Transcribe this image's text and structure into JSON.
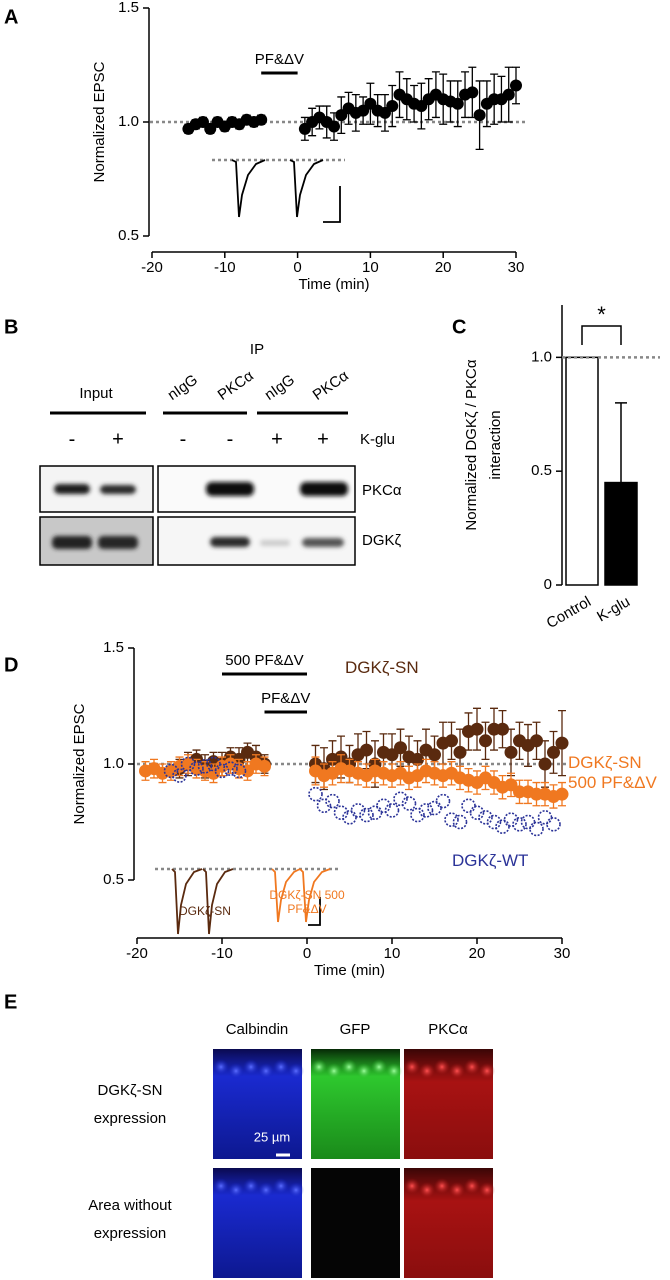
{
  "chart_data": [
    {
      "type": "scatter",
      "label": "A",
      "ylabel": "Normalized EPSC",
      "xlabel": "Time (min)",
      "xlim": [
        -20,
        30
      ],
      "xticks": [
        -20,
        -10,
        0,
        10,
        20,
        30
      ],
      "ylim": [
        0.5,
        1.5
      ],
      "yticks": [
        0.5,
        {
          "value": 1,
          "label": "1.0"
        },
        1.5
      ],
      "reference": 1,
      "bars": [
        {
          "label": "PF&ΔV",
          "x": [
            -5,
            0
          ]
        }
      ],
      "series": [
        {
          "color": "#000000",
          "marker": "filled",
          "x": [
            -15,
            -14,
            -13,
            -12,
            -11,
            -10,
            -9,
            -8,
            -7,
            -6,
            -5,
            1,
            2,
            3,
            4,
            5,
            6,
            7,
            8,
            9,
            10,
            11,
            12,
            13,
            14,
            15,
            16,
            17,
            18,
            19,
            20,
            21,
            22,
            23,
            24,
            25,
            26,
            27,
            28,
            29,
            30
          ],
          "values": [
            0.97,
            0.99,
            1.0,
            0.97,
            1.0,
            0.98,
            1.0,
            0.99,
            1.01,
            1.0,
            1.01,
            0.97,
            1.0,
            1.02,
            1.0,
            0.98,
            1.03,
            1.06,
            1.04,
            1.05,
            1.08,
            1.05,
            1.04,
            1.07,
            1.12,
            1.1,
            1.08,
            1.07,
            1.1,
            1.12,
            1.1,
            1.09,
            1.08,
            1.12,
            1.13,
            1.03,
            1.08,
            1.1,
            1.1,
            1.12,
            1.16
          ],
          "errors": [
            0.02,
            0.02,
            0.02,
            0.02,
            0.02,
            0.02,
            0.02,
            0.02,
            0.02,
            0.02,
            0.02,
            0.05,
            0.06,
            0.05,
            0.07,
            0.06,
            0.08,
            0.07,
            0.08,
            0.06,
            0.09,
            0.07,
            0.08,
            0.09,
            0.1,
            0.09,
            0.08,
            0.1,
            0.09,
            0.1,
            0.11,
            0.09,
            0.1,
            0.1,
            0.11,
            0.15,
            0.1,
            0.11,
            0.1,
            0.12,
            0.08
          ]
        }
      ]
    },
    {
      "type": "bar",
      "label": "C",
      "ylabel": [
        "Normalized DGKζ / PKCα",
        "interaction"
      ],
      "categories": [
        "Control",
        "K-glu"
      ],
      "values": [
        1,
        0.45
      ],
      "errors": [
        null,
        0.35
      ],
      "colors": [
        "#ffffff",
        "#000000"
      ],
      "ylim": [
        0,
        1.23
      ],
      "yticks": [
        0,
        0.5,
        {
          "value": 1,
          "label": "1.0"
        }
      ],
      "reference": 1,
      "annotation": "*"
    },
    {
      "type": "scatter",
      "label": "D",
      "ylabel": "Normalized EPSC",
      "xlabel": "Time (min)",
      "xlim": [
        -20,
        30
      ],
      "xticks": [
        -20,
        -10,
        0,
        10,
        20,
        30
      ],
      "ylim": [
        0.5,
        1.5
      ],
      "yticks": [
        0.5,
        {
          "value": 1,
          "label": "1.0"
        },
        1.5
      ],
      "reference": 1,
      "bars": [
        {
          "label": "500 PF&ΔV",
          "x": [
            -10,
            0
          ]
        },
        {
          "label": "PF&ΔV",
          "x": [
            -5,
            0
          ]
        }
      ],
      "inset_labels": [
        "DGKζ-SN",
        "DGKζ-SN 500 PF&ΔV"
      ],
      "series": [
        {
          "name": "DGKζ-SN",
          "color": "#5a2a0f",
          "marker": "filled",
          "x": [
            -15,
            -14,
            -13,
            -12,
            -11,
            -10,
            -9,
            -8,
            -7,
            -6,
            -5,
            1,
            2,
            3,
            4,
            5,
            6,
            7,
            8,
            9,
            10,
            11,
            12,
            13,
            14,
            15,
            16,
            17,
            18,
            19,
            20,
            21,
            22,
            23,
            24,
            25,
            26,
            27,
            28,
            29,
            30
          ],
          "values": [
            0.98,
            1.0,
            1.02,
            0.99,
            1.01,
            1.0,
            1.03,
            1.02,
            1.05,
            1.03,
            1.0,
            1.0,
            0.98,
            1.02,
            1.03,
            1.0,
            1.04,
            1.06,
            1.0,
            1.05,
            1.04,
            1.07,
            1.03,
            1.02,
            1.06,
            1.04,
            1.09,
            1.1,
            1.05,
            1.14,
            1.15,
            1.1,
            1.15,
            1.15,
            1.05,
            1.1,
            1.08,
            1.1,
            1.0,
            1.05,
            1.09
          ],
          "errors": [
            0.04,
            0.05,
            0.04,
            0.05,
            0.04,
            0.05,
            0.04,
            0.05,
            0.04,
            0.05,
            0.04,
            0.08,
            0.09,
            0.08,
            0.09,
            0.08,
            0.09,
            0.08,
            0.1,
            0.08,
            0.09,
            0.08,
            0.09,
            0.08,
            0.09,
            0.08,
            0.09,
            0.08,
            0.1,
            0.08,
            0.09,
            0.08,
            0.09,
            0.08,
            0.1,
            0.08,
            0.09,
            0.08,
            0.1,
            0.09,
            0.14
          ]
        },
        {
          "name": "DGKζ-SN 500 PF&ΔV",
          "color": "#f07820",
          "marker": "filled",
          "x": [
            -19,
            -18,
            -17,
            -16,
            -15,
            -14,
            -13,
            -12,
            -11,
            -10,
            -9,
            -8,
            -7,
            -6,
            -5,
            1,
            2,
            3,
            4,
            5,
            6,
            7,
            8,
            9,
            10,
            11,
            12,
            13,
            14,
            15,
            16,
            17,
            18,
            19,
            20,
            21,
            22,
            23,
            24,
            25,
            26,
            27,
            28,
            29,
            30
          ],
          "values": [
            0.97,
            0.98,
            0.96,
            0.97,
            0.99,
            1.0,
            0.98,
            0.97,
            0.96,
            0.99,
            1.0,
            0.98,
            0.97,
            1.0,
            0.99,
            0.97,
            0.95,
            0.96,
            0.98,
            0.97,
            0.96,
            0.95,
            0.97,
            0.96,
            0.95,
            0.96,
            0.94,
            0.95,
            0.97,
            0.96,
            0.95,
            0.96,
            0.94,
            0.93,
            0.92,
            0.94,
            0.92,
            0.9,
            0.91,
            0.88,
            0.88,
            0.87,
            0.87,
            0.86,
            0.87
          ],
          "errors": [
            0.04,
            0.04,
            0.04,
            0.04,
            0.04,
            0.04,
            0.04,
            0.04,
            0.04,
            0.04,
            0.04,
            0.04,
            0.04,
            0.04,
            0.04,
            0.06,
            0.05,
            0.05,
            0.06,
            0.05,
            0.05,
            0.05,
            0.05,
            0.05,
            0.05,
            0.05,
            0.05,
            0.05,
            0.05,
            0.05,
            0.05,
            0.05,
            0.05,
            0.05,
            0.05,
            0.05,
            0.05,
            0.05,
            0.05,
            0.05,
            0.05,
            0.05,
            0.05,
            0.05,
            0.05
          ]
        },
        {
          "name": "DGKζ-WT",
          "color": "#2b3398",
          "marker": "open",
          "x": [
            -16,
            -15,
            -14,
            -13,
            -12,
            -11,
            -10,
            -9,
            -8,
            1,
            2,
            3,
            4,
            5,
            6,
            7,
            8,
            9,
            10,
            11,
            12,
            13,
            14,
            15,
            16,
            17,
            18,
            19,
            20,
            21,
            22,
            23,
            24,
            25,
            26,
            27,
            28,
            29
          ],
          "values": [
            0.97,
            0.95,
            1.0,
            0.98,
            0.99,
            1.0,
            0.97,
            0.98,
            0.97,
            0.87,
            0.82,
            0.84,
            0.79,
            0.77,
            0.8,
            0.78,
            0.79,
            0.82,
            0.8,
            0.85,
            0.83,
            0.78,
            0.8,
            0.81,
            0.84,
            0.76,
            0.75,
            0.82,
            0.79,
            0.77,
            0.75,
            0.73,
            0.76,
            0.74,
            0.75,
            0.72,
            0.77,
            0.74
          ]
        }
      ]
    }
  ],
  "blot": {
    "label": "B",
    "ip": "IP",
    "input": "Input",
    "lanes": [
      "nIgG",
      "PKCα",
      "nIgG",
      "PKCα"
    ],
    "kglu_label": "K-glu",
    "kglu": [
      "-",
      "+",
      "-",
      "-",
      "+",
      "+"
    ],
    "rows": [
      "PKCα",
      "DGKζ"
    ]
  },
  "micrographs": {
    "label": "E",
    "columns": [
      "Calbindin",
      "GFP",
      "PKCα"
    ],
    "rows": [
      [
        "DGKζ-SN",
        "expression"
      ],
      [
        "Area without",
        "expression"
      ]
    ],
    "scale_bar": "25 µm"
  }
}
